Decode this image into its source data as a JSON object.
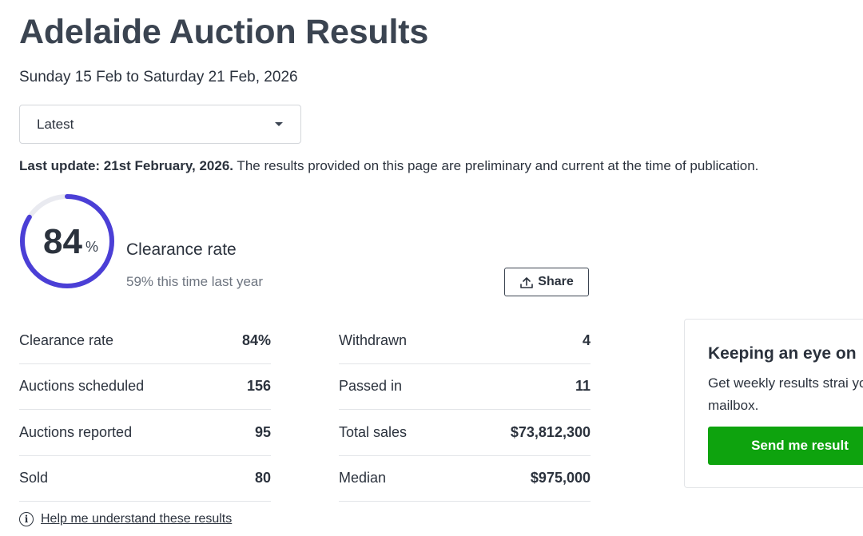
{
  "header": {
    "title": "Adelaide Auction Results",
    "date_range": "Sunday 15 Feb to Saturday 21 Feb, 2026"
  },
  "period_select": {
    "value": "Latest"
  },
  "update_notice": {
    "bold": "Last update: 21st February, 2026.",
    "text": " The results provided on this page are preliminary and current at the time of publication."
  },
  "clearance": {
    "value": "84",
    "percent_sign": "%",
    "fraction": 0.84,
    "label": "Clearance rate",
    "last_year": "59% this time last year",
    "ring_color": "#4b3fd6",
    "ring_track_color": "#e9eaf0"
  },
  "share_button": {
    "label": "Share",
    "icon": "share-upload-icon"
  },
  "stats_left": [
    {
      "label": "Clearance rate",
      "value": "84%"
    },
    {
      "label": "Auctions scheduled",
      "value": "156"
    },
    {
      "label": "Auctions reported",
      "value": "95"
    },
    {
      "label": "Sold",
      "value": "80"
    }
  ],
  "stats_right": [
    {
      "label": "Withdrawn",
      "value": "4"
    },
    {
      "label": "Passed in",
      "value": "11"
    },
    {
      "label": "Total sales",
      "value": "$73,812,300"
    },
    {
      "label": "Median",
      "value": "$975,000"
    }
  ],
  "help_link": {
    "label": "Help me understand these results",
    "icon": "info-icon"
  },
  "subscribe_card": {
    "title": "Keeping an eye on",
    "body": "Get weekly results strai your mailbox.",
    "button": "Send me result",
    "button_color": "#0ea30e"
  }
}
